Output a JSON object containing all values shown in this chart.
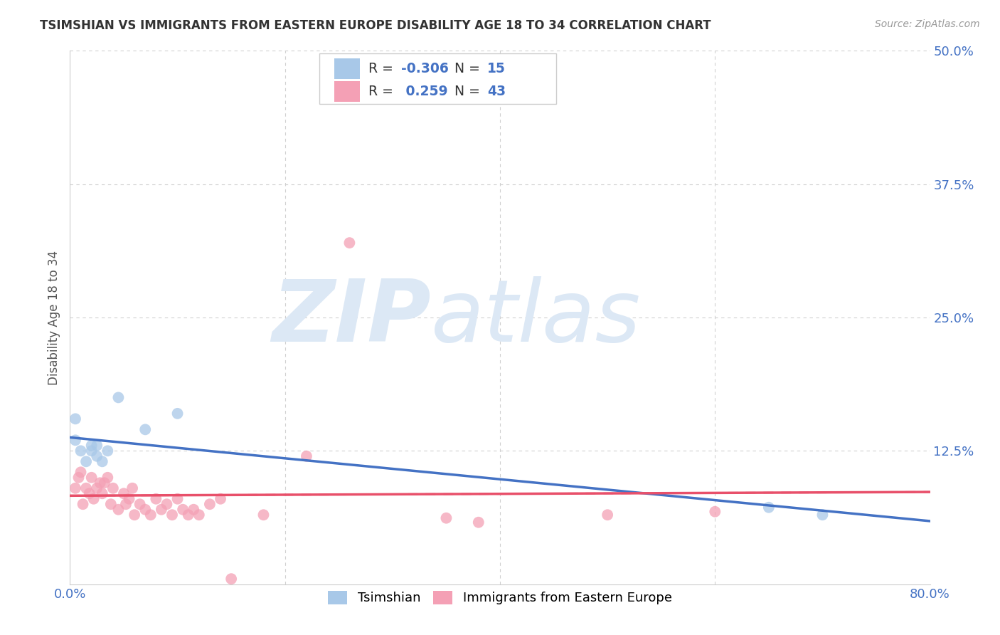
{
  "title": "TSIMSHIAN VS IMMIGRANTS FROM EASTERN EUROPE DISABILITY AGE 18 TO 34 CORRELATION CHART",
  "source": "Source: ZipAtlas.com",
  "ylabel": "Disability Age 18 to 34",
  "xlim": [
    0.0,
    0.8
  ],
  "ylim": [
    0.0,
    0.5
  ],
  "xticks": [
    0.0,
    0.2,
    0.4,
    0.6,
    0.8
  ],
  "xticklabels": [
    "0.0%",
    "",
    "",
    "",
    "80.0%"
  ],
  "yticks": [
    0.0,
    0.125,
    0.25,
    0.375,
    0.5
  ],
  "yticklabels": [
    "",
    "12.5%",
    "25.0%",
    "37.5%",
    "50.0%"
  ],
  "background_color": "#ffffff",
  "grid_color": "#d0d0d0",
  "watermark_line1": "ZIP",
  "watermark_line2": "atlas",
  "watermark_color": "#dce8f5",
  "tsimshian": {
    "name": "Tsimshian",
    "color": "#a8c8e8",
    "R": -0.306,
    "N": 15,
    "trend_color": "#4472c4",
    "trend_style": "solid",
    "points_x": [
      0.005,
      0.01,
      0.015,
      0.02,
      0.02,
      0.025,
      0.025,
      0.03,
      0.035,
      0.045,
      0.07,
      0.1,
      0.005,
      0.65,
      0.7
    ],
    "points_y": [
      0.135,
      0.125,
      0.115,
      0.125,
      0.13,
      0.12,
      0.13,
      0.115,
      0.125,
      0.175,
      0.145,
      0.16,
      0.155,
      0.072,
      0.065
    ]
  },
  "eastern_europe": {
    "name": "Immigrants from Eastern Europe",
    "color": "#f4a0b5",
    "R": 0.259,
    "N": 43,
    "trend_color": "#e8506a",
    "trend_dashed_color": "#f0a0b8",
    "points_x": [
      0.005,
      0.008,
      0.01,
      0.012,
      0.015,
      0.018,
      0.02,
      0.022,
      0.025,
      0.028,
      0.03,
      0.032,
      0.035,
      0.038,
      0.04,
      0.045,
      0.05,
      0.052,
      0.055,
      0.058,
      0.06,
      0.065,
      0.07,
      0.075,
      0.08,
      0.085,
      0.09,
      0.095,
      0.1,
      0.105,
      0.11,
      0.115,
      0.12,
      0.13,
      0.14,
      0.15,
      0.18,
      0.22,
      0.26,
      0.35,
      0.38,
      0.5,
      0.6
    ],
    "points_y": [
      0.09,
      0.1,
      0.105,
      0.075,
      0.09,
      0.085,
      0.1,
      0.08,
      0.09,
      0.095,
      0.085,
      0.095,
      0.1,
      0.075,
      0.09,
      0.07,
      0.085,
      0.075,
      0.08,
      0.09,
      0.065,
      0.075,
      0.07,
      0.065,
      0.08,
      0.07,
      0.075,
      0.065,
      0.08,
      0.07,
      0.065,
      0.07,
      0.065,
      0.075,
      0.08,
      0.005,
      0.065,
      0.12,
      0.32,
      0.062,
      0.058,
      0.065,
      0.068
    ]
  }
}
